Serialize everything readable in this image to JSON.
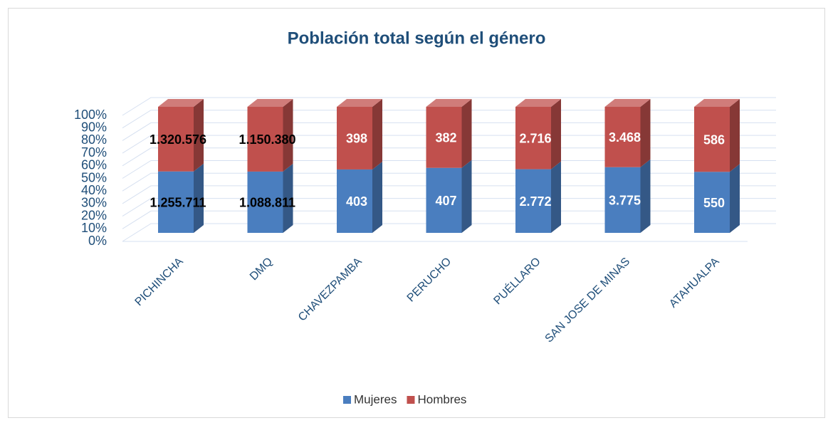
{
  "chart_data": {
    "type": "bar",
    "stacked_percent": true,
    "title": "Población total según el género",
    "categories": [
      "PICHINCHA",
      "DMQ",
      "CHAVEZPAMBA",
      "PERUCHO",
      "PUÉLLARO",
      "SAN JOSE DE MINAS",
      "ATAHUALPA"
    ],
    "series": [
      {
        "name": "Mujeres",
        "color": "#4a7ebf",
        "values": [
          1255711,
          1088811,
          403,
          407,
          2772,
          3775,
          550
        ],
        "value_labels": [
          "1.255.711",
          "1.088.811",
          "403",
          "407",
          "2.772",
          "3.775",
          "550"
        ]
      },
      {
        "name": "Hombres",
        "color": "#c0504d",
        "values": [
          1320576,
          1150380,
          398,
          382,
          2716,
          3468,
          586
        ],
        "value_labels": [
          "1.320.576",
          "1.150.380",
          "398",
          "382",
          "2.716",
          "3.468",
          "586"
        ]
      }
    ],
    "ylim": [
      0,
      100
    ],
    "yticks": [
      {
        "value": 0,
        "label": "0%"
      },
      {
        "value": 10,
        "label": "10%"
      },
      {
        "value": 20,
        "label": "20%"
      },
      {
        "value": 30,
        "label": "30%"
      },
      {
        "value": 40,
        "label": "40%"
      },
      {
        "value": 50,
        "label": "50%"
      },
      {
        "value": 60,
        "label": "60%"
      },
      {
        "value": 70,
        "label": "70%"
      },
      {
        "value": 80,
        "label": "80%"
      },
      {
        "value": 90,
        "label": "90%"
      },
      {
        "value": 100,
        "label": "100%"
      }
    ],
    "grid": true,
    "legend": "bottom"
  }
}
